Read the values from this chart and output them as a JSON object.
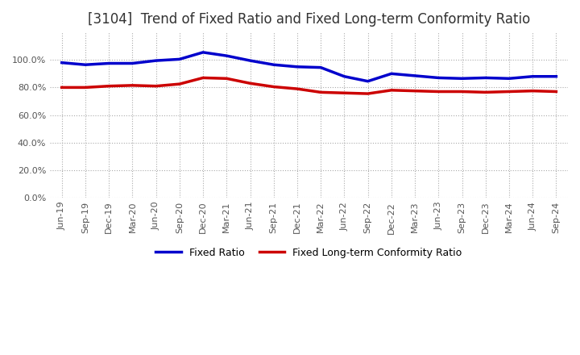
{
  "title": "[3104]  Trend of Fixed Ratio and Fixed Long-term Conformity Ratio",
  "x_labels": [
    "Jun-19",
    "Sep-19",
    "Dec-19",
    "Mar-20",
    "Jun-20",
    "Sep-20",
    "Dec-20",
    "Mar-21",
    "Jun-21",
    "Sep-21",
    "Dec-21",
    "Mar-22",
    "Jun-22",
    "Sep-22",
    "Dec-22",
    "Mar-23",
    "Jun-23",
    "Sep-23",
    "Dec-23",
    "Mar-24",
    "Jun-24",
    "Sep-24"
  ],
  "fixed_ratio": [
    98.0,
    96.5,
    97.5,
    97.5,
    99.5,
    100.5,
    105.5,
    103.0,
    99.5,
    96.5,
    95.0,
    94.5,
    88.0,
    84.5,
    90.0,
    88.5,
    87.0,
    86.5,
    87.0,
    86.5,
    88.0,
    88.0
  ],
  "fixed_lt_ratio": [
    80.0,
    80.0,
    81.0,
    81.5,
    81.0,
    82.5,
    87.0,
    86.5,
    83.0,
    80.5,
    79.0,
    76.5,
    76.0,
    75.5,
    78.0,
    77.5,
    77.0,
    77.0,
    76.5,
    77.0,
    77.5,
    77.0
  ],
  "fixed_ratio_color": "#0000cc",
  "fixed_lt_ratio_color": "#cc0000",
  "ylim": [
    0,
    120
  ],
  "yticks": [
    0,
    20,
    40,
    60,
    80,
    100
  ],
  "background_color": "#ffffff",
  "grid_color": "#aaaaaa",
  "legend_fixed": "Fixed Ratio",
  "legend_lt": "Fixed Long-term Conformity Ratio",
  "title_fontsize": 12,
  "tick_fontsize": 8,
  "legend_fontsize": 9,
  "line_width": 2.5
}
